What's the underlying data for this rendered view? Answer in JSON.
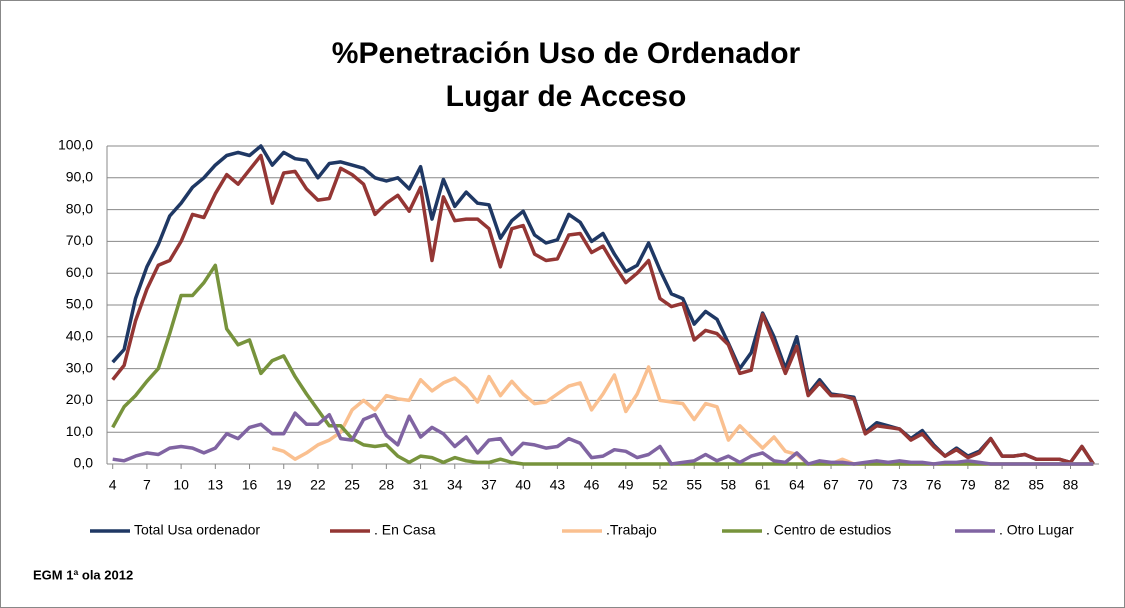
{
  "chart_data": {
    "type": "line",
    "title": "%Penetración Uso de Ordenador",
    "subtitle": "Lugar de Acceso",
    "note": "EGM 1ª ola 2012",
    "x": [
      4,
      5,
      6,
      7,
      8,
      9,
      10,
      11,
      12,
      13,
      14,
      15,
      16,
      17,
      18,
      19,
      20,
      21,
      22,
      23,
      24,
      25,
      26,
      27,
      28,
      29,
      30,
      31,
      32,
      33,
      34,
      35,
      36,
      37,
      38,
      39,
      40,
      41,
      42,
      43,
      44,
      45,
      46,
      47,
      48,
      49,
      50,
      51,
      52,
      53,
      54,
      55,
      56,
      57,
      58,
      59,
      60,
      61,
      62,
      63,
      64,
      65,
      66,
      67,
      68,
      69,
      70,
      71,
      72,
      73,
      74,
      75,
      76,
      77,
      78,
      79,
      80,
      81,
      82,
      83,
      84,
      85,
      86,
      87,
      88,
      89,
      90
    ],
    "xlim": [
      3.5,
      90.5
    ],
    "xticks": [
      4,
      7,
      10,
      13,
      16,
      19,
      22,
      25,
      28,
      31,
      34,
      37,
      40,
      43,
      46,
      49,
      52,
      55,
      58,
      61,
      64,
      67,
      70,
      73,
      76,
      79,
      82,
      85,
      88
    ],
    "ylim": [
      0,
      100
    ],
    "yticks": [
      {
        "value": 0,
        "label": "0,0"
      },
      {
        "value": 10,
        "label": "10,0"
      },
      {
        "value": 20,
        "label": "20,0"
      },
      {
        "value": 30,
        "label": "30,0"
      },
      {
        "value": 40,
        "label": "40,0"
      },
      {
        "value": 50,
        "label": "50,0"
      },
      {
        "value": 60,
        "label": "60,0"
      },
      {
        "value": 70,
        "label": "70,0"
      },
      {
        "value": 80,
        "label": "80,0"
      },
      {
        "value": 90,
        "label": "90,0"
      },
      {
        "value": 100,
        "label": "100,0"
      }
    ],
    "grid": true,
    "legend": "bottom",
    "series": [
      {
        "name": "Total Usa ordenador",
        "color": "#1f3864",
        "values": [
          32,
          36,
          52,
          62,
          69,
          78,
          82,
          87,
          90,
          94,
          97,
          98,
          97,
          100,
          94,
          98,
          96,
          95.5,
          90,
          94.5,
          95,
          94,
          93,
          90,
          89,
          90,
          86.5,
          93.5,
          77,
          89.5,
          81,
          85.5,
          82,
          81.5,
          71,
          76.5,
          79.5,
          72,
          69.5,
          70.5,
          78.5,
          76,
          70,
          72.5,
          66,
          60.5,
          62.5,
          69.5,
          61,
          53.5,
          52,
          44,
          48,
          45.5,
          38,
          30,
          35,
          47.5,
          40,
          30,
          40,
          22,
          26.5,
          22,
          21.5,
          21,
          10,
          13,
          12,
          11,
          8,
          10.5,
          6,
          2.5,
          5,
          2.5,
          4,
          8,
          2.5,
          2.5,
          3,
          1.5,
          1.5,
          1.5,
          0.5,
          5.5,
          0
        ]
      },
      {
        "name": ". En Casa",
        "color": "#943634",
        "values": [
          26.5,
          31,
          45,
          55,
          62.5,
          64,
          70,
          78.5,
          77.5,
          85,
          91,
          88,
          92.5,
          97,
          82,
          91.5,
          92,
          86.5,
          83,
          83.5,
          93,
          91,
          88,
          78.5,
          82,
          84.5,
          79.5,
          87,
          64,
          84,
          76.5,
          77,
          77,
          74,
          62,
          74,
          75,
          66,
          64,
          64.5,
          72,
          72.5,
          66.5,
          68.5,
          62.5,
          57,
          60,
          64,
          52,
          49.5,
          50.5,
          39,
          42,
          41,
          37.5,
          28.5,
          29.5,
          47,
          38,
          28.5,
          37,
          21.5,
          25.5,
          21.5,
          21.5,
          20.5,
          9.5,
          12,
          11.5,
          11,
          7.5,
          9.5,
          5.5,
          2.5,
          4.5,
          2,
          3.5,
          8,
          2.5,
          2.5,
          3,
          1.5,
          1.5,
          1.5,
          0.5,
          5.5,
          0
        ]
      },
      {
        "name": ".Trabajo",
        "color": "#fac090",
        "values": [
          null,
          null,
          null,
          null,
          null,
          null,
          null,
          null,
          null,
          null,
          null,
          null,
          null,
          null,
          5,
          4,
          1.5,
          3.5,
          6,
          7.5,
          10,
          17,
          20,
          17,
          21.5,
          20.5,
          20,
          26.5,
          23,
          25.5,
          27,
          24,
          19.5,
          27.5,
          21.5,
          26,
          22,
          19,
          19.5,
          22,
          24.5,
          25.5,
          17,
          22,
          28,
          16.5,
          22,
          30.5,
          20,
          19.5,
          19,
          14,
          19,
          18,
          7.5,
          12,
          8.5,
          5,
          8.5,
          4,
          3,
          0,
          0,
          0,
          1.5,
          0,
          0,
          0,
          0,
          0,
          0,
          0,
          0,
          0,
          0,
          0,
          0,
          0,
          0,
          0,
          0,
          0,
          0,
          0,
          0,
          0,
          0
        ]
      },
      {
        "name": ". Centro de estudios",
        "color": "#77933c",
        "values": [
          11.5,
          18,
          21.5,
          26,
          30,
          41,
          53,
          53,
          57,
          62.5,
          42.5,
          37.5,
          39,
          28.5,
          32.5,
          34,
          27.5,
          22,
          17,
          12,
          12,
          8,
          6,
          5.5,
          6,
          2.5,
          0.5,
          2.5,
          2,
          0.5,
          2,
          1,
          0.5,
          0.5,
          1.5,
          0.5,
          0,
          0,
          0,
          0,
          0,
          0,
          0,
          0,
          0,
          0,
          0,
          0,
          0,
          0,
          0,
          0,
          0,
          0,
          0,
          0,
          0,
          0,
          0,
          0,
          0,
          0,
          0,
          0,
          0,
          0,
          0,
          0,
          0,
          0,
          0,
          0,
          0,
          0,
          0,
          0,
          0,
          0,
          0,
          0,
          0,
          0,
          0,
          0,
          0,
          0,
          0
        ]
      },
      {
        "name": ". Otro Lugar",
        "color": "#8064a2",
        "values": [
          1.5,
          1,
          2.5,
          3.5,
          3,
          5,
          5.5,
          5,
          3.5,
          5,
          9.5,
          8,
          11.5,
          12.5,
          9.5,
          9.5,
          16,
          12.5,
          12.5,
          15.5,
          8,
          7.5,
          14,
          15.5,
          9,
          6,
          15,
          8.5,
          11.5,
          9.5,
          5.5,
          8.5,
          3.5,
          7.5,
          8,
          3,
          6.5,
          6,
          5,
          5.5,
          8,
          6.5,
          2,
          2.5,
          4.5,
          4,
          2,
          3,
          5.5,
          0,
          0.5,
          1,
          3,
          1,
          2.5,
          0.5,
          2.5,
          3.5,
          1,
          0.5,
          3.5,
          0,
          1,
          0.5,
          0.5,
          0,
          0.5,
          1,
          0.5,
          1,
          0.5,
          0.5,
          0,
          0.5,
          0.5,
          1,
          0.5,
          0,
          0,
          0,
          0,
          0,
          0,
          0,
          0,
          0,
          0
        ]
      }
    ]
  }
}
